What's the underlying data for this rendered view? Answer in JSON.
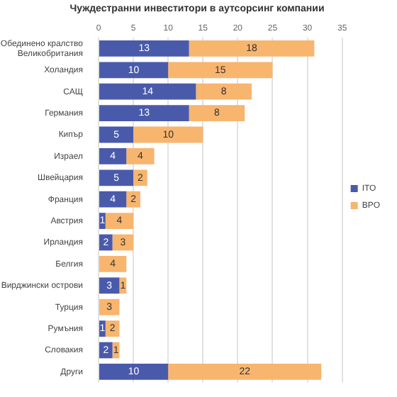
{
  "chart_data": {
    "type": "bar",
    "orientation": "horizontal",
    "stacked": true,
    "title": "Чуждестранни инвеститори в аутсорсинг компании",
    "categories": [
      "Обединено кралство Великобритания",
      "Холандия",
      "САЩ",
      "Германия",
      "Кипър",
      "Израел",
      "Швейцария",
      "Франция",
      "Австрия",
      "Ирландия",
      "Белгия",
      "Вирджински острови",
      "Турция",
      "Румъния",
      "Словакия",
      "Други"
    ],
    "series": [
      {
        "name": "ITO",
        "color": "#4a5aab",
        "values": [
          13,
          10,
          14,
          13,
          5,
          4,
          5,
          4,
          1,
          2,
          null,
          3,
          null,
          1,
          2,
          10
        ]
      },
      {
        "name": "BPO",
        "color": "#f8b56e",
        "values": [
          18,
          15,
          8,
          8,
          10,
          4,
          2,
          2,
          4,
          3,
          4,
          1,
          3,
          2,
          1,
          22
        ]
      }
    ],
    "xlim": [
      0,
      35
    ],
    "xticks": [
      0,
      5,
      10,
      15,
      20,
      25,
      30,
      35
    ],
    "grid": "x",
    "legend": "right",
    "data_labels": true
  }
}
